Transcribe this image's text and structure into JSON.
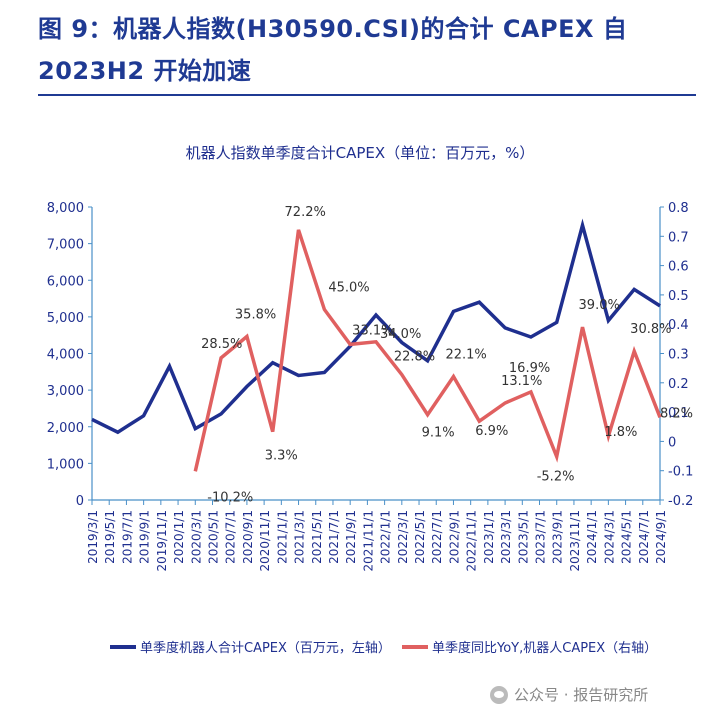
{
  "figure_title": "图 9：机器人指数(H30590.CSI)的合计 CAPEX 自2023H2 开始加速",
  "watermark": "公众号 · 报告研究所",
  "colors": {
    "title": "#1f3a93",
    "capex_line": "#1f2f8f",
    "yoy_line": "#e06060",
    "axis": "#4a90c8"
  },
  "chart_data": {
    "type": "line",
    "title": "机器人指数单季度合计CAPEX（单位：百万元，%）",
    "x": [
      "2019/3/1",
      "2019/5/1",
      "2019/7/1",
      "2019/9/1",
      "2019/11/1",
      "2020/1/1",
      "2020/3/1",
      "2020/5/1",
      "2020/7/1",
      "2020/9/1",
      "2020/11/1",
      "2021/1/1",
      "2021/3/1",
      "2021/5/1",
      "2021/7/1",
      "2021/9/1",
      "2021/11/1",
      "2022/1/1",
      "2022/3/1",
      "2022/5/1",
      "2022/7/1",
      "2022/9/1",
      "2022/11/1",
      "2023/1/1",
      "2023/3/1",
      "2023/5/1",
      "2023/7/1",
      "2023/9/1",
      "2023/11/1",
      "2024/1/1",
      "2024/3/1",
      "2024/5/1",
      "2024/7/1",
      "2024/9/1"
    ],
    "left_axis": {
      "ylim": [
        0,
        8000
      ],
      "ticks": [
        "0",
        "1,000",
        "2,000",
        "3,000",
        "4,000",
        "5,000",
        "6,000",
        "7,000",
        "8,000"
      ]
    },
    "right_axis": {
      "ylim": [
        -0.2,
        0.8
      ],
      "ticks": [
        "-0.2",
        "-0.1",
        "0",
        "0.1",
        "0.2",
        "0.3",
        "0.4",
        "0.5",
        "0.6",
        "0.7",
        "0.8"
      ]
    },
    "series": [
      {
        "name": "单季度机器人合计CAPEX（百万元，左轴）",
        "axis": "left",
        "x": [
          "2019/3/1",
          "2019/6/1",
          "2019/9/1",
          "2019/12/1",
          "2020/3/1",
          "2020/6/1",
          "2020/9/1",
          "2020/12/1",
          "2021/3/1",
          "2021/6/1",
          "2021/9/1",
          "2021/12/1",
          "2022/3/1",
          "2022/6/1",
          "2022/9/1",
          "2022/12/1",
          "2023/3/1",
          "2023/6/1",
          "2023/9/1",
          "2023/12/1",
          "2024/3/1",
          "2024/6/1",
          "2024/9/1"
        ],
        "values": [
          2200,
          1850,
          2300,
          3650,
          1950,
          2350,
          3100,
          3750,
          3400,
          3480,
          4200,
          5050,
          4300,
          3800,
          5150,
          5400,
          4700,
          4450,
          4850,
          7500,
          4900,
          5750,
          5300
        ]
      },
      {
        "name": "单季度同比YoY,机器人CAPEX（右轴）",
        "axis": "right",
        "x": [
          "2020/3/1",
          "2020/6/1",
          "2020/9/1",
          "2020/12/1",
          "2021/3/1",
          "2021/6/1",
          "2021/9/1",
          "2021/12/1",
          "2022/3/1",
          "2022/6/1",
          "2022/9/1",
          "2022/12/1",
          "2023/3/1",
          "2023/6/1",
          "2023/9/1",
          "2023/12/1",
          "2024/3/1",
          "2024/6/1",
          "2024/9/1"
        ],
        "values": [
          -0.102,
          0.285,
          0.358,
          0.033,
          0.722,
          0.45,
          0.331,
          0.34,
          0.228,
          0.091,
          0.221,
          0.069,
          0.131,
          0.169,
          -0.052,
          0.39,
          0.018,
          0.308,
          0.082
        ]
      }
    ],
    "data_labels": [
      "-10.2%",
      "28.5%",
      "35.8%",
      "3.3%",
      "72.2%",
      "45.0%",
      "33.1%",
      "34.0%",
      "22.8%",
      "9.1%",
      "22.1%",
      "6.9%",
      "13.1%",
      "16.9%",
      "-5.2%",
      "39.0%",
      "1.8%",
      "30.8%",
      "8.2%"
    ],
    "legend": {
      "placement": "bottom"
    }
  }
}
